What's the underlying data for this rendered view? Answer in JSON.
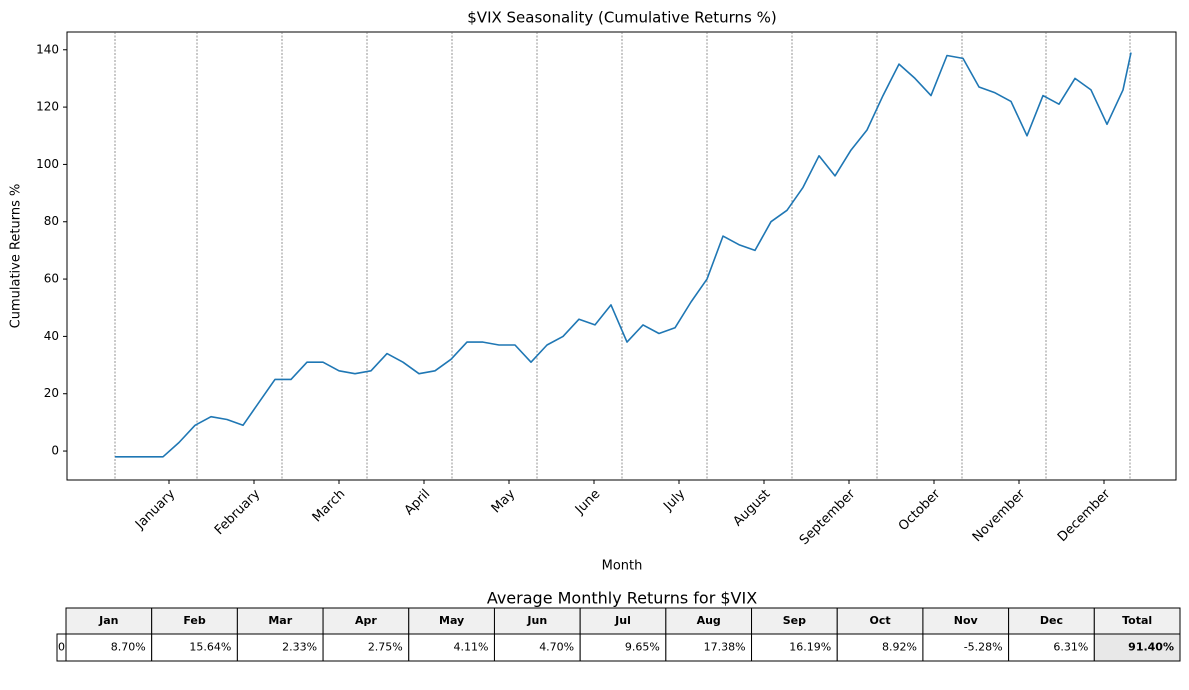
{
  "chart_data": {
    "type": "line",
    "title": "$VIX Seasonality (Cumulative Returns %)",
    "x_label": "Month",
    "y_label": "Cumulative Returns %",
    "color": "#1f77b4",
    "x": [
      0,
      4,
      8,
      12,
      16,
      20,
      24,
      28,
      32,
      36,
      40,
      44,
      48,
      52,
      56,
      60,
      64,
      68,
      72,
      76,
      80,
      84,
      88,
      92,
      96,
      100,
      104,
      108,
      112,
      116,
      120,
      124,
      128,
      132,
      136,
      140,
      144,
      148,
      152,
      156,
      160,
      164,
      168,
      172,
      176,
      180,
      184,
      188,
      192,
      196,
      200,
      204,
      208,
      212,
      216,
      220,
      224,
      228,
      232,
      236,
      240,
      244,
      248,
      252,
      254
    ],
    "values": [
      -2,
      -2,
      -2,
      -2,
      3,
      9,
      12,
      11,
      9,
      17,
      25,
      25,
      31,
      31,
      28,
      27,
      28,
      34,
      31,
      27,
      28,
      32,
      38,
      38,
      37,
      37,
      31,
      37,
      40,
      46,
      44,
      51,
      38,
      44,
      41,
      43,
      52,
      60,
      75,
      72,
      70,
      80,
      84,
      92,
      103,
      96,
      105,
      112,
      124,
      135,
      130,
      124,
      138,
      137,
      127,
      125,
      122,
      110,
      124,
      121,
      130,
      126,
      114,
      126,
      139
    ],
    "xlim": [
      -12,
      265.25
    ],
    "ylim": [
      -10.1,
      146.2
    ],
    "yticks": [
      0,
      20,
      40,
      60,
      80,
      100,
      120,
      140
    ],
    "xticks": [
      {
        "value": 13.5,
        "label": "January"
      },
      {
        "value": 34.75,
        "label": "February"
      },
      {
        "value": 56,
        "label": "March"
      },
      {
        "value": 77.25,
        "label": "April"
      },
      {
        "value": 98.5,
        "label": "May"
      },
      {
        "value": 119.75,
        "label": "June"
      },
      {
        "value": 141,
        "label": "July"
      },
      {
        "value": 162.25,
        "label": "August"
      },
      {
        "value": 183.5,
        "label": "September"
      },
      {
        "value": 204.75,
        "label": "October"
      },
      {
        "value": 226,
        "label": "November"
      },
      {
        "value": 247.25,
        "label": "December"
      }
    ],
    "vlines": [
      0,
      20.5,
      41.75,
      63,
      84.25,
      105.5,
      126.75,
      148,
      169.25,
      190.5,
      211.75,
      232.75,
      253.75
    ]
  },
  "table": {
    "title": "Average Monthly Returns for $VIX",
    "columns": [
      "Jan",
      "Feb",
      "Mar",
      "Apr",
      "May",
      "Jun",
      "Jul",
      "Aug",
      "Sep",
      "Oct",
      "Nov",
      "Dec",
      "Total"
    ],
    "row_labels": [
      "0"
    ],
    "rows": [
      [
        "8.70%",
        "15.64%",
        "2.33%",
        "2.75%",
        "4.11%",
        "4.70%",
        "9.65%",
        "17.38%",
        "16.19%",
        "8.92%",
        "-5.28%",
        "6.31%",
        "91.40%"
      ]
    ]
  }
}
